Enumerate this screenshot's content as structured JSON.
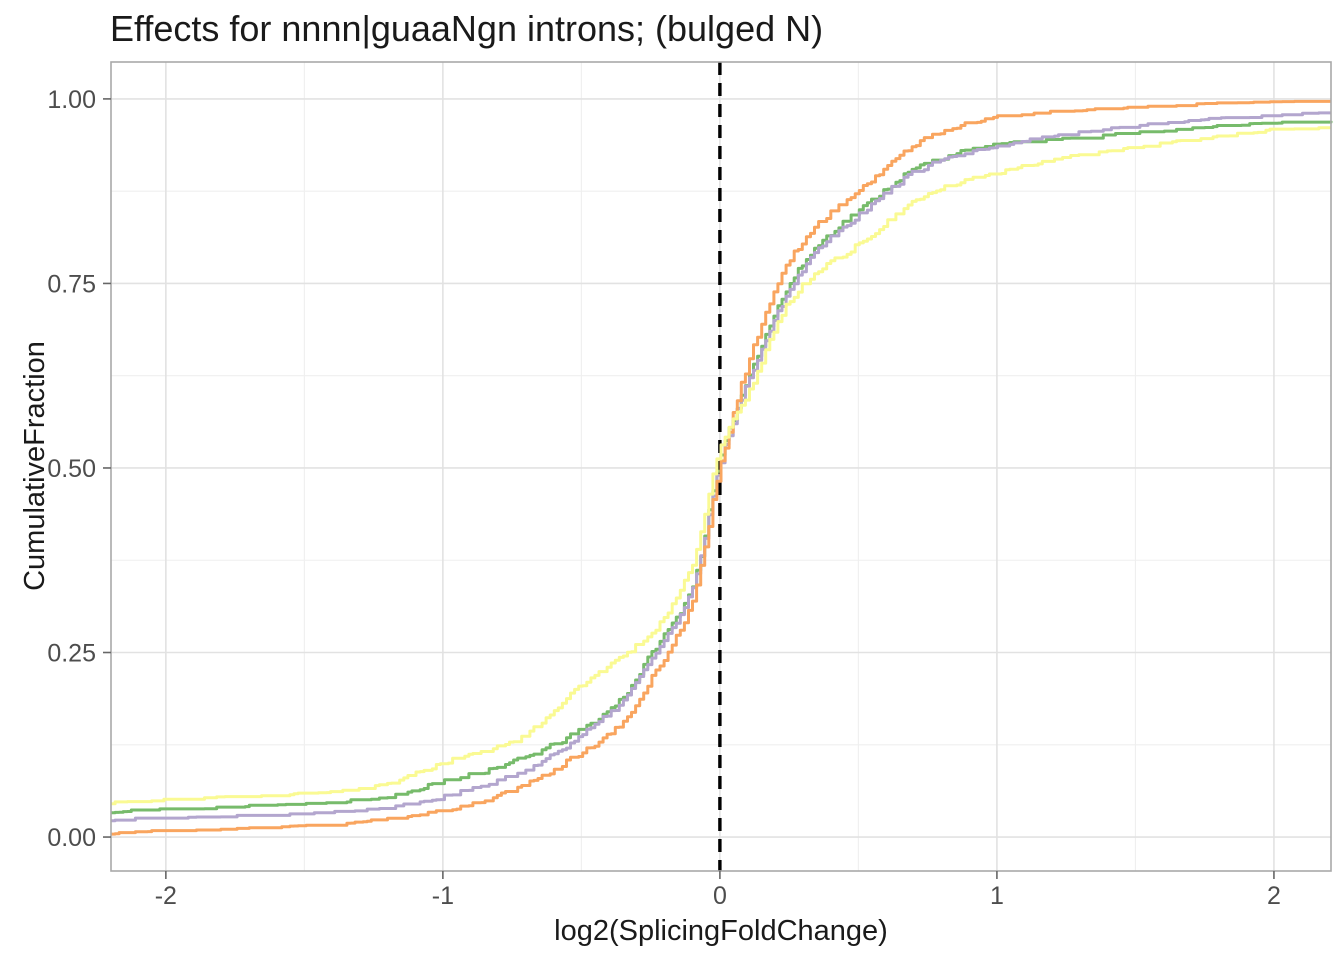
{
  "chart_data": {
    "type": "line",
    "subtype": "ecdf-step",
    "title": "Effects for nnnn|guaaNgn introns; (bulged N)",
    "xlabel": "log2(SplicingFoldChange)",
    "ylabel": "CumulativeFraction",
    "xlim": [
      -2.198,
      2.206
    ],
    "ylim": [
      -0.046,
      1.05
    ],
    "x_ticks": [
      -2,
      -1,
      0,
      1,
      2
    ],
    "x_tick_labels": [
      "-2",
      "-1",
      "0",
      "1",
      "2"
    ],
    "x_minor_ticks": [
      -1.5,
      -0.5,
      0.5,
      1.5
    ],
    "y_ticks": [
      0,
      0.25,
      0.5,
      0.75,
      1
    ],
    "y_tick_labels": [
      "0.00",
      "0.25",
      "0.50",
      "0.75",
      "1.00"
    ],
    "y_minor_ticks": [
      0.125,
      0.375,
      0.625,
      0.875
    ],
    "grid": true,
    "legend": "none",
    "vline": {
      "x": 0,
      "style": "dashed",
      "color": "#000000"
    },
    "colors": {
      "major_grid": "#E2E2E2",
      "minor_grid": "#EFEFEF",
      "panel_border": "#A9A9A9",
      "tick_mark": "#666666",
      "tick_label": "#4D4D4D",
      "text": "#1A1A1A"
    },
    "anchor_x": [
      -2.2,
      -2.0,
      -1.75,
      -1.5,
      -1.25,
      -1.0,
      -0.75,
      -0.5,
      -0.35,
      -0.25,
      -0.1,
      0,
      0.1,
      0.25,
      0.35,
      0.5,
      0.75,
      1.0,
      1.25,
      1.5,
      1.75,
      2.0,
      2.2
    ],
    "series": [
      {
        "name": "green",
        "color": "#77BB6B",
        "values": [
          0.033,
          0.036,
          0.039,
          0.043,
          0.05,
          0.074,
          0.101,
          0.145,
          0.19,
          0.247,
          0.34,
          0.51,
          0.62,
          0.747,
          0.8,
          0.848,
          0.913,
          0.936,
          0.944,
          0.952,
          0.96,
          0.965,
          0.967
        ]
      },
      {
        "name": "purple",
        "color": "#B3A6CE",
        "values": [
          0.022,
          0.024,
          0.027,
          0.03,
          0.036,
          0.054,
          0.082,
          0.138,
          0.185,
          0.24,
          0.335,
          0.505,
          0.615,
          0.74,
          0.795,
          0.842,
          0.909,
          0.934,
          0.951,
          0.962,
          0.97,
          0.977,
          0.978
        ]
      },
      {
        "name": "orange",
        "color": "#F9A55F",
        "values": [
          0.004,
          0.006,
          0.009,
          0.013,
          0.02,
          0.034,
          0.062,
          0.114,
          0.155,
          0.213,
          0.32,
          0.5,
          0.64,
          0.78,
          0.828,
          0.875,
          0.947,
          0.974,
          0.982,
          0.986,
          0.991,
          0.993,
          0.994
        ]
      },
      {
        "name": "yellow",
        "color": "#FAFA93",
        "values": [
          0.045,
          0.048,
          0.052,
          0.057,
          0.066,
          0.1,
          0.128,
          0.205,
          0.245,
          0.275,
          0.37,
          0.525,
          0.6,
          0.725,
          0.765,
          0.802,
          0.87,
          0.9,
          0.919,
          0.932,
          0.945,
          0.956,
          0.958
        ]
      }
    ]
  }
}
